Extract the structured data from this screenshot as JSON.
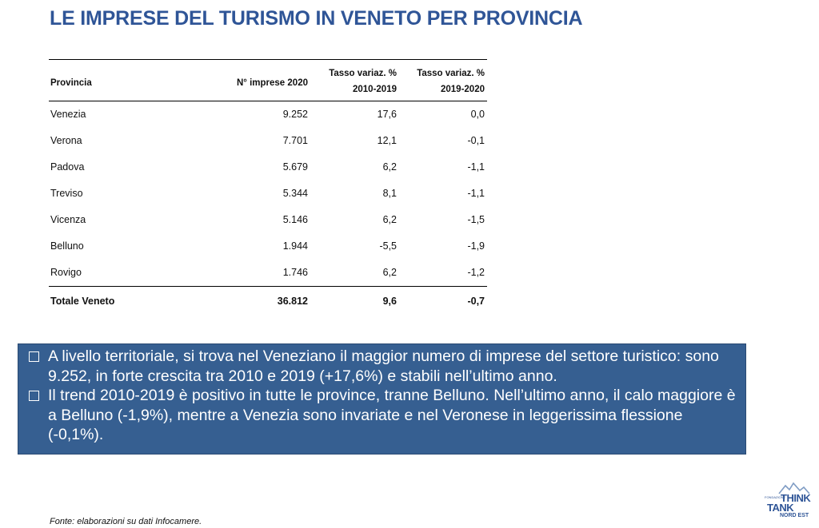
{
  "title": "LE IMPRESE DEL TURISMO IN VENETO PER PROVINCIA",
  "table": {
    "headers": {
      "provincia": "Provincia",
      "imprese": "N° imprese 2020",
      "var1_line1": "Tasso variaz. %",
      "var1_line2": "2010-2019",
      "var2_line1": "Tasso variaz. %",
      "var2_line2": "2019-2020"
    },
    "rows": [
      {
        "provincia": "Venezia",
        "imprese": "9.252",
        "var1": "17,6",
        "var2": "0,0"
      },
      {
        "provincia": "Verona",
        "imprese": "7.701",
        "var1": "12,1",
        "var2": "-0,1"
      },
      {
        "provincia": "Padova",
        "imprese": "5.679",
        "var1": "6,2",
        "var2": "-1,1"
      },
      {
        "provincia": "Treviso",
        "imprese": "5.344",
        "var1": "8,1",
        "var2": "-1,1"
      },
      {
        "provincia": "Vicenza",
        "imprese": "5.146",
        "var1": "6,2",
        "var2": "-1,5"
      },
      {
        "provincia": "Belluno",
        "imprese": "1.944",
        "var1": "-5,5",
        "var2": "-1,9"
      },
      {
        "provincia": "Rovigo",
        "imprese": "1.746",
        "var1": "6,2",
        "var2": "-1,2"
      }
    ],
    "total": {
      "provincia": "Totale Veneto",
      "imprese": "36.812",
      "var1": "9,6",
      "var2": "-0,7"
    }
  },
  "notes": [
    "A livello territoriale, si trova nel Veneziano il maggior numero di imprese del settore turistico: sono 9.252, in forte crescita tra 2010 e 2019 (+17,6%) e stabili nell’ultimo anno.",
    "Il trend 2010-2019 è positivo in tutte le province, tranne Belluno. Nell’ultimo anno, il calo maggiore è a Belluno (-1,9%), mentre a Venezia sono invariate e nel Veronese in leggerissima flessione (-0,1%)."
  ],
  "source": "Fonte: elaborazioni su dati Infocamere.",
  "logo": {
    "think": "THINK",
    "small": "FONDAZIONE",
    "tank": "TANK",
    "nordest": "NORD EST"
  },
  "colors": {
    "title": "#2f5597",
    "note_box_bg": "#365f91"
  }
}
